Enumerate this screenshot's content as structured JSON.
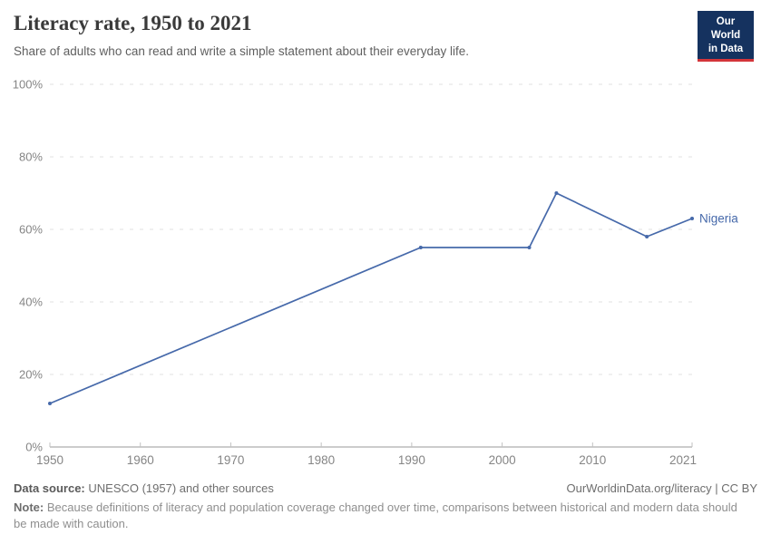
{
  "header": {
    "title": "Literacy rate, 1950 to 2021",
    "subtitle": "Share of adults who can read and write a simple statement about their everyday life.",
    "logo": {
      "line1": "Our World",
      "line2": "in Data",
      "bg_color": "#15325f",
      "accent_color": "#d4353a"
    }
  },
  "chart_data": {
    "type": "line",
    "title": "Literacy rate, 1950 to 2021",
    "xlabel": "",
    "ylabel": "",
    "series": [
      {
        "name": "Nigeria",
        "color": "#4669aa",
        "x": [
          1950,
          1991,
          2003,
          2006,
          2016,
          2021
        ],
        "values": [
          12,
          55,
          55,
          70,
          58,
          63
        ]
      }
    ],
    "xlim": [
      1950,
      2021
    ],
    "ylim": [
      0,
      100
    ],
    "xticks": [
      1950,
      1960,
      1970,
      1980,
      1990,
      2000,
      2010,
      2021
    ],
    "yticks": [
      "0%",
      "20%",
      "40%",
      "60%",
      "80%",
      "100%"
    ],
    "grid": "horizontal-dashed",
    "legend_position": "line-end-label"
  },
  "footer": {
    "source_label": "Data source:",
    "source_text": "UNESCO (1957) and other sources",
    "attribution": "OurWorldinData.org/literacy | CC BY",
    "note_label": "Note:",
    "note_text": "Because definitions of literacy and population coverage changed over time, comparisons between historical and modern data should be made with caution."
  }
}
